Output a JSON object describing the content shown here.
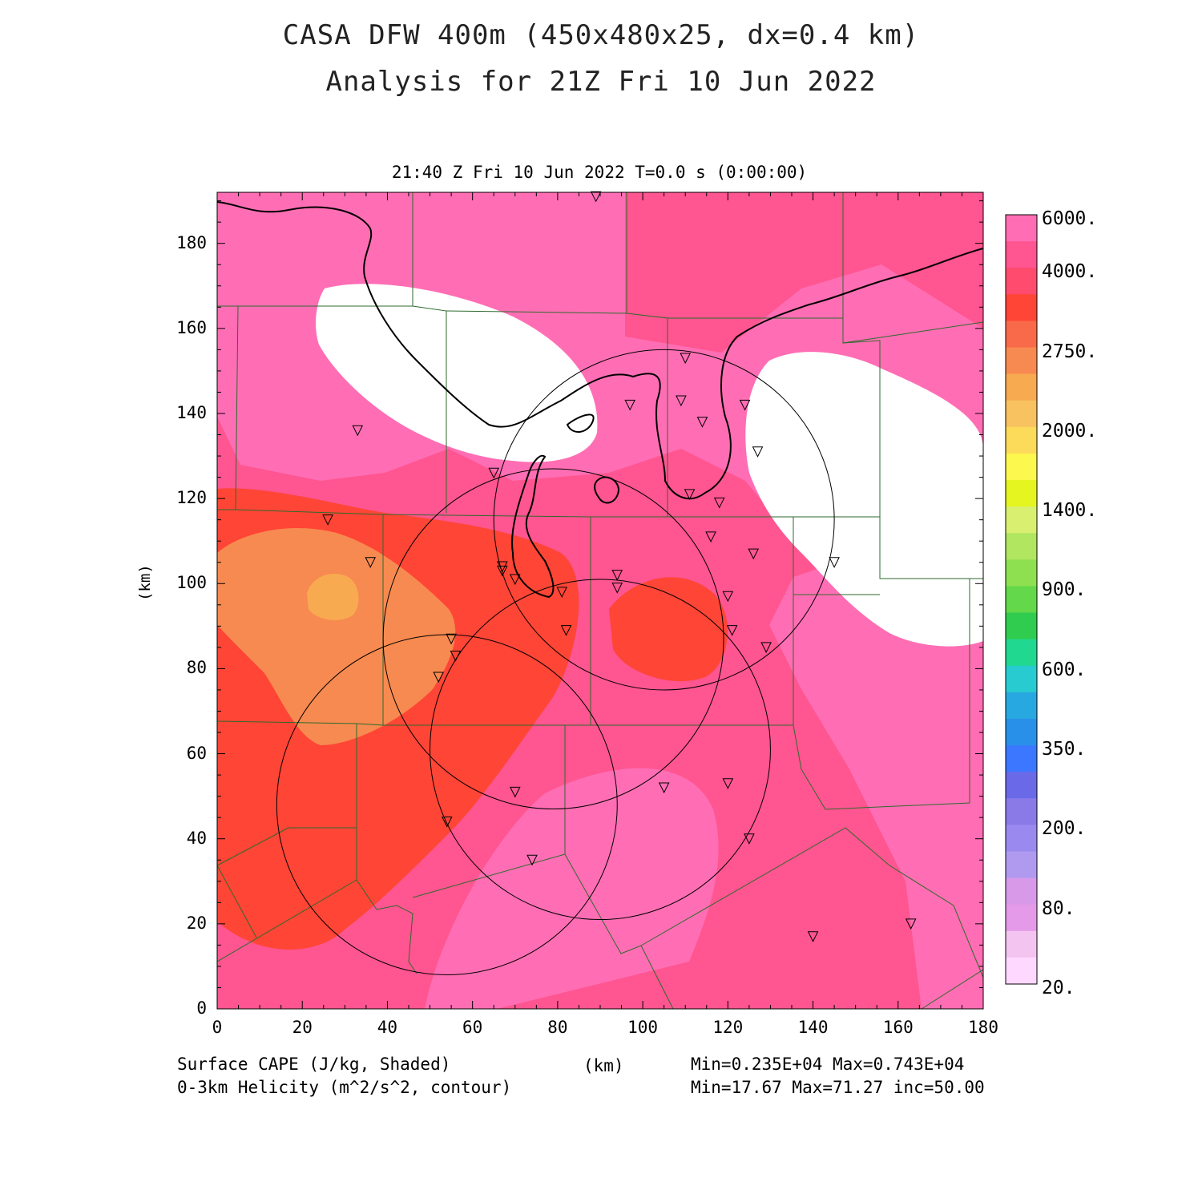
{
  "title": {
    "line1": "CASA DFW 400m (450x480x25, dx=0.4 km)",
    "line2": "Analysis for 21Z Fri 10 Jun 2022"
  },
  "subtitle": "21:40 Z Fri 10 Jun 2022   T=0.0 s (0:00:00)",
  "footer": {
    "field1": "Surface CAPE (J/kg, Shaded)",
    "field2": "0-3km Helicity (m^2/s^2, contour)",
    "xunit": "(km)",
    "stats1": "Min=0.235E+04 Max=0.743E+04",
    "stats2": "Min=17.67 Max=71.27 inc=50.00"
  },
  "axes": {
    "ylabel": "(km)",
    "x_ticks": [
      "0",
      "20",
      "40",
      "60",
      "80",
      "100",
      "120",
      "140",
      "160",
      "180"
    ],
    "y_ticks": [
      "0",
      "20",
      "40",
      "60",
      "80",
      "100",
      "120",
      "140",
      "160",
      "180"
    ],
    "xlim": [
      0,
      180
    ],
    "ylim": [
      0,
      192
    ]
  },
  "colorbar": {
    "labels": [
      "6000.",
      "4000.",
      "2750.",
      "2000.",
      "1400.",
      "900.",
      "600.",
      "350.",
      "200.",
      "80.",
      "20."
    ],
    "colors": [
      "#ff6eb4",
      "#ff5590",
      "#ff4b6e",
      "#ff4535",
      "#f86a4a",
      "#f78a50",
      "#f8aa50",
      "#f9c260",
      "#fddb5a",
      "#fcf84e",
      "#e4f520",
      "#d8ef70",
      "#b0e660",
      "#8ee050",
      "#62d84a",
      "#30cc50",
      "#20d890",
      "#28ccd0",
      "#28a8e0",
      "#2890e8",
      "#3c78ff",
      "#6a6ae8",
      "#8a7ae8",
      "#9a8af0",
      "#b09af0",
      "#d89ae8",
      "#e49ae8",
      "#f4c4f0",
      "#ffd8ff"
    ],
    "color_meaning": "top to bottom, high to low CAPE"
  },
  "radars": [
    {
      "cx": 105,
      "cy": 115,
      "r": 40
    },
    {
      "cx": 79,
      "cy": 87,
      "r": 40
    },
    {
      "cx": 90,
      "cy": 61,
      "r": 40
    },
    {
      "cx": 54,
      "cy": 48,
      "r": 40
    }
  ],
  "stations": [
    [
      89,
      191
    ],
    [
      33,
      136
    ],
    [
      110,
      153
    ],
    [
      97,
      142
    ],
    [
      109,
      143
    ],
    [
      124,
      142
    ],
    [
      114,
      138
    ],
    [
      127,
      131
    ],
    [
      65,
      126
    ],
    [
      111,
      121
    ],
    [
      118,
      119
    ],
    [
      26,
      115
    ],
    [
      36,
      105
    ],
    [
      67,
      104
    ],
    [
      67,
      103
    ],
    [
      70,
      101
    ],
    [
      94,
      102
    ],
    [
      126,
      107
    ],
    [
      145,
      105
    ],
    [
      116,
      111
    ],
    [
      94,
      99
    ],
    [
      81,
      98
    ],
    [
      120,
      97
    ],
    [
      82,
      89
    ],
    [
      121,
      89
    ],
    [
      55,
      87
    ],
    [
      129,
      85
    ],
    [
      56,
      83
    ],
    [
      52,
      78
    ],
    [
      70,
      51
    ],
    [
      105,
      52
    ],
    [
      120,
      53
    ],
    [
      54,
      44
    ],
    [
      125,
      40
    ],
    [
      74,
      35
    ],
    [
      163,
      20
    ],
    [
      140,
      17
    ]
  ]
}
